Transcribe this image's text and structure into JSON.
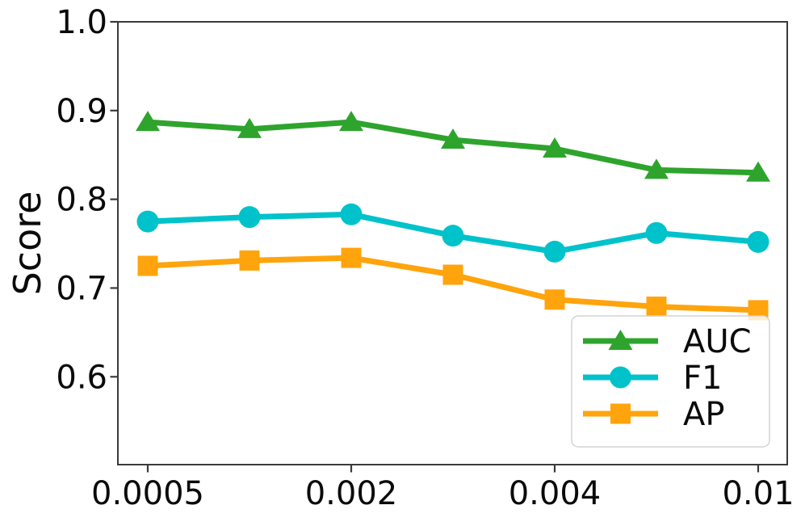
{
  "figure": {
    "background": "#ffffff",
    "axis_line_color": "#3a3a3a",
    "text_color": "#0a0a0a"
  },
  "chart_data": {
    "type": "line",
    "title": "",
    "xlabel": "",
    "ylabel": "Score",
    "n_points": 7,
    "x_tick_labels": [
      "0.0005",
      "0.002",
      "0.004",
      "0.01"
    ],
    "x_tick_point_indices": [
      0,
      2,
      4,
      6
    ],
    "y_ticks": [
      1.0,
      0.9,
      0.8,
      0.7,
      0.6
    ],
    "y_tick_labels": [
      "1.0",
      "0.9",
      "0.8",
      "0.7",
      "0.6"
    ],
    "ylim": [
      0.501,
      1.0
    ],
    "grid": false,
    "x_axis_note": "7 evenly spaced data points; tick labels shown at points 0, 2, 4, 6",
    "series": [
      {
        "name": "AUC",
        "color": "#2ea42d",
        "marker": "triangle",
        "values": [
          0.887,
          0.879,
          0.887,
          0.867,
          0.857,
          0.833,
          0.83
        ]
      },
      {
        "name": "F1",
        "color": "#00c2cb",
        "marker": "circle",
        "values": [
          0.775,
          0.78,
          0.783,
          0.759,
          0.741,
          0.762,
          0.752
        ]
      },
      {
        "name": "AP",
        "color": "#ffa40c",
        "marker": "square",
        "values": [
          0.725,
          0.731,
          0.734,
          0.715,
          0.687,
          0.679,
          0.675
        ]
      }
    ],
    "legend": {
      "position": "lower right",
      "entries": [
        "AUC",
        "F1",
        "AP"
      ],
      "border_color": "#d4d4d4",
      "background": "rgba(255,255,255,0.8)"
    }
  }
}
